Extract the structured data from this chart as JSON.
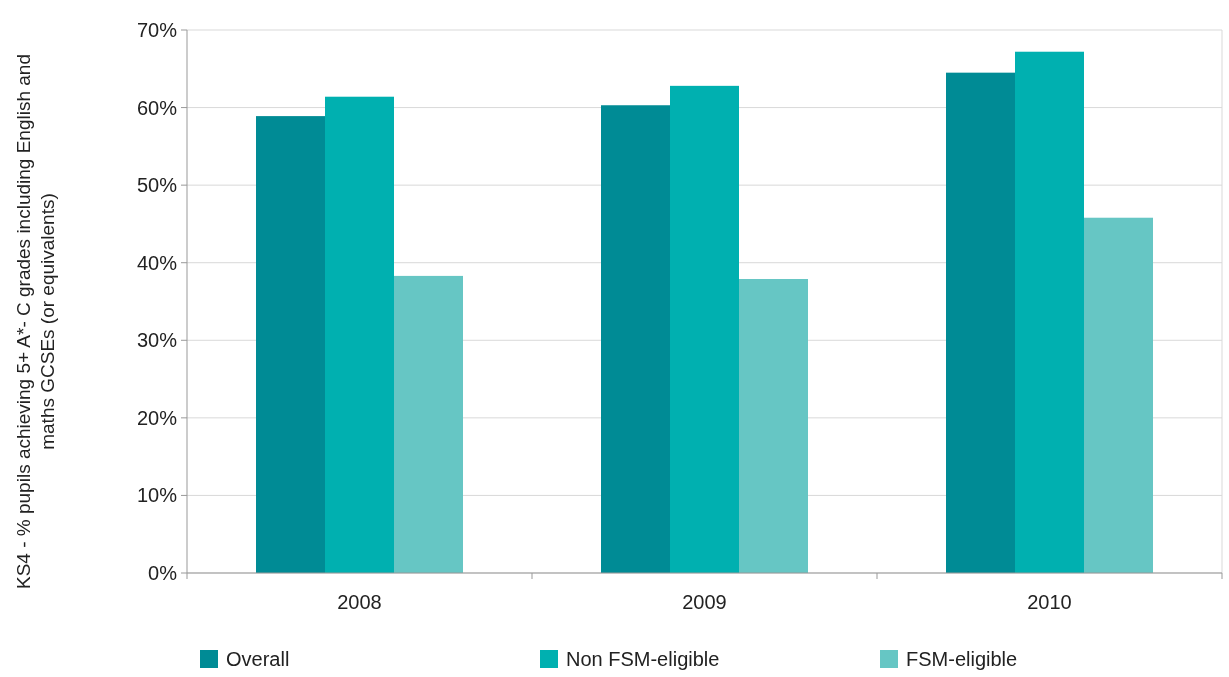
{
  "chart_data": {
    "type": "bar",
    "ylabel": "KS4 - % pupils achieving 5+ A*- C grades including English and maths GCSEs (or equivalents)",
    "categories": [
      "2008",
      "2009",
      "2010"
    ],
    "series": [
      {
        "name": "Overall",
        "color": "#008b95",
        "values": [
          58.9,
          60.3,
          64.5
        ]
      },
      {
        "name": "Non FSM-eligible",
        "color": "#00b0b0",
        "values": [
          61.4,
          62.8,
          67.2
        ]
      },
      {
        "name": "FSM-eligible",
        "color": "#66c6c4",
        "values": [
          38.3,
          37.9,
          45.8
        ]
      }
    ],
    "ylim": [
      0,
      70
    ],
    "yticks": [
      {
        "value": 0,
        "label": "0%"
      },
      {
        "value": 10,
        "label": "10%"
      },
      {
        "value": 20,
        "label": "20%"
      },
      {
        "value": 30,
        "label": "30%"
      },
      {
        "value": 40,
        "label": "40%"
      },
      {
        "value": 50,
        "label": "50%"
      },
      {
        "value": 60,
        "label": "60%"
      },
      {
        "value": 70,
        "label": "70%"
      }
    ],
    "grid": "y",
    "legend": "bottom"
  }
}
